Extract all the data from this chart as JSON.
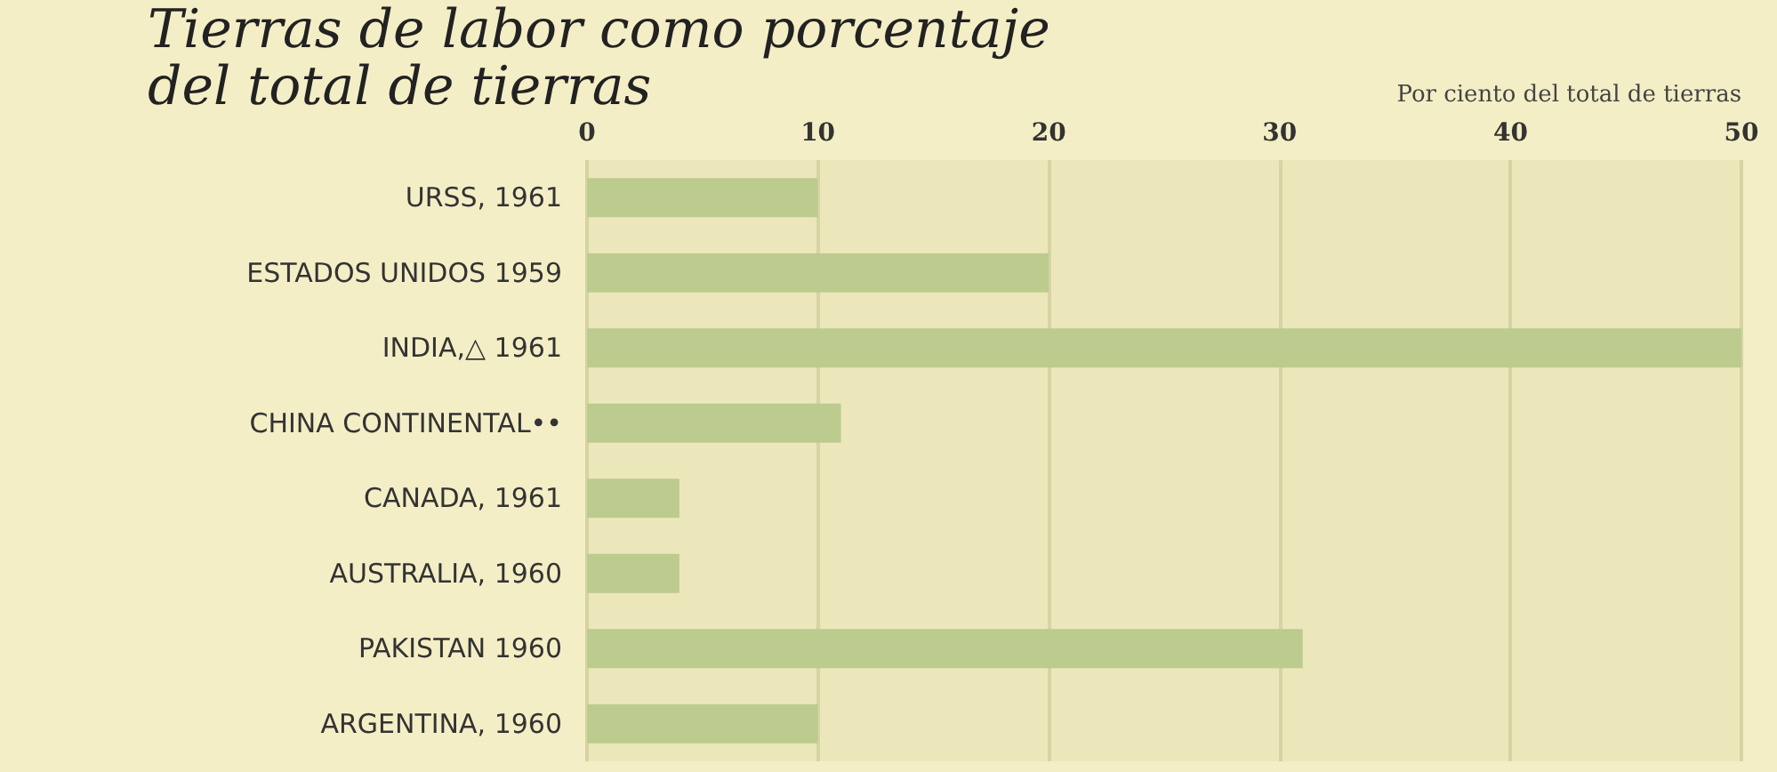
{
  "chart_data": {
    "type": "bar",
    "orientation": "horizontal",
    "title": "Tierras de labor como porcentaje\ndel total de tierras",
    "xlabel": "Por ciento del total de tierras",
    "categories": [
      "URSS, 1961",
      "ESTADOS UNIDOS 1959",
      "INDIA,△ 1961",
      "CHINA CONTINENTAL••",
      "CANADA, 1961",
      "AUSTRALIA, 1960",
      "PAKISTAN 1960",
      "ARGENTINA, 1960"
    ],
    "values": [
      10,
      20,
      50,
      11,
      4,
      4,
      31,
      10
    ],
    "color": "#bccb8e",
    "xlim": [
      0,
      50
    ],
    "xticks": [
      0,
      10,
      20,
      30,
      40,
      50
    ],
    "grid": "x"
  }
}
